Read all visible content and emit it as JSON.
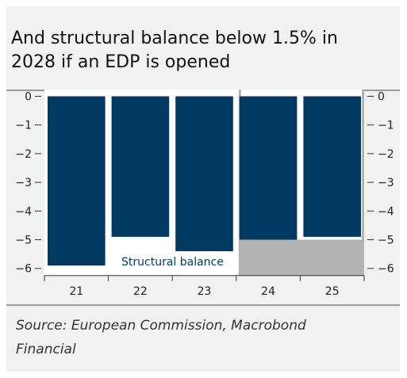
{
  "title_line1": "And structural balance below 1.5% in",
  "title_line2": "2028 if an EDP is opened",
  "source_line1": "Source: European Commission, Macrobond",
  "source_line2": "Financial",
  "chart_data": {
    "type": "bar",
    "categories": [
      "21",
      "22",
      "23",
      "24",
      "25"
    ],
    "series": [
      {
        "name": "Structural balance",
        "values": [
          -5.9,
          -4.9,
          -5.4,
          -5.0,
          -4.9
        ]
      }
    ],
    "shaded_categories": [
      "24",
      "25"
    ],
    "shaded_area_floor": -5.0,
    "ylim": [
      -6.25,
      0.1
    ],
    "yticks": [
      0,
      -1,
      -2,
      -3,
      -4,
      -5,
      -6
    ],
    "ytick_labels": [
      "0",
      "−1",
      "−2",
      "−3",
      "−4",
      "−5",
      "−6"
    ],
    "colors": {
      "bar": "#003a63",
      "shade": "#b3b3b3",
      "label": "#003a63"
    }
  }
}
